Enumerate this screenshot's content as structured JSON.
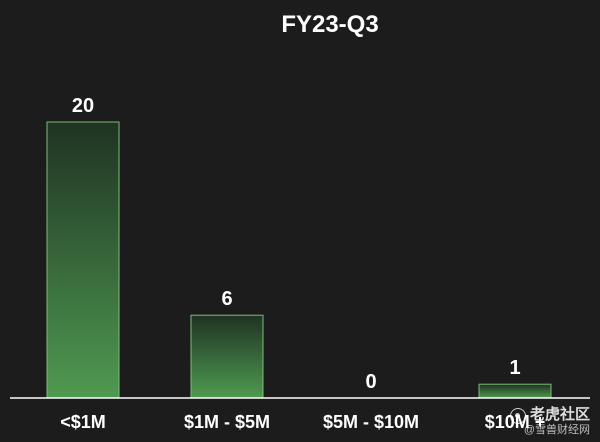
{
  "chart_data": {
    "type": "bar",
    "title": "FY23-Q3",
    "categories": [
      "<$1M",
      "$1M - $5M",
      "$5M - $10M",
      "$10M +"
    ],
    "values": [
      20,
      6,
      0,
      1
    ],
    "xlabel": "",
    "ylabel": "",
    "ylim": [
      0,
      20
    ],
    "grid": false,
    "legend": "none",
    "colors": {
      "background": "#1c1c1c",
      "bar_top": "#1f3323",
      "bar_bottom": "#4f9a50",
      "bar_border": "#7dbb7b",
      "axis": "#ffffff",
      "text": "#ffffff"
    }
  },
  "watermark": {
    "main": "老虎社区",
    "sub": "@雪兽财经网"
  }
}
